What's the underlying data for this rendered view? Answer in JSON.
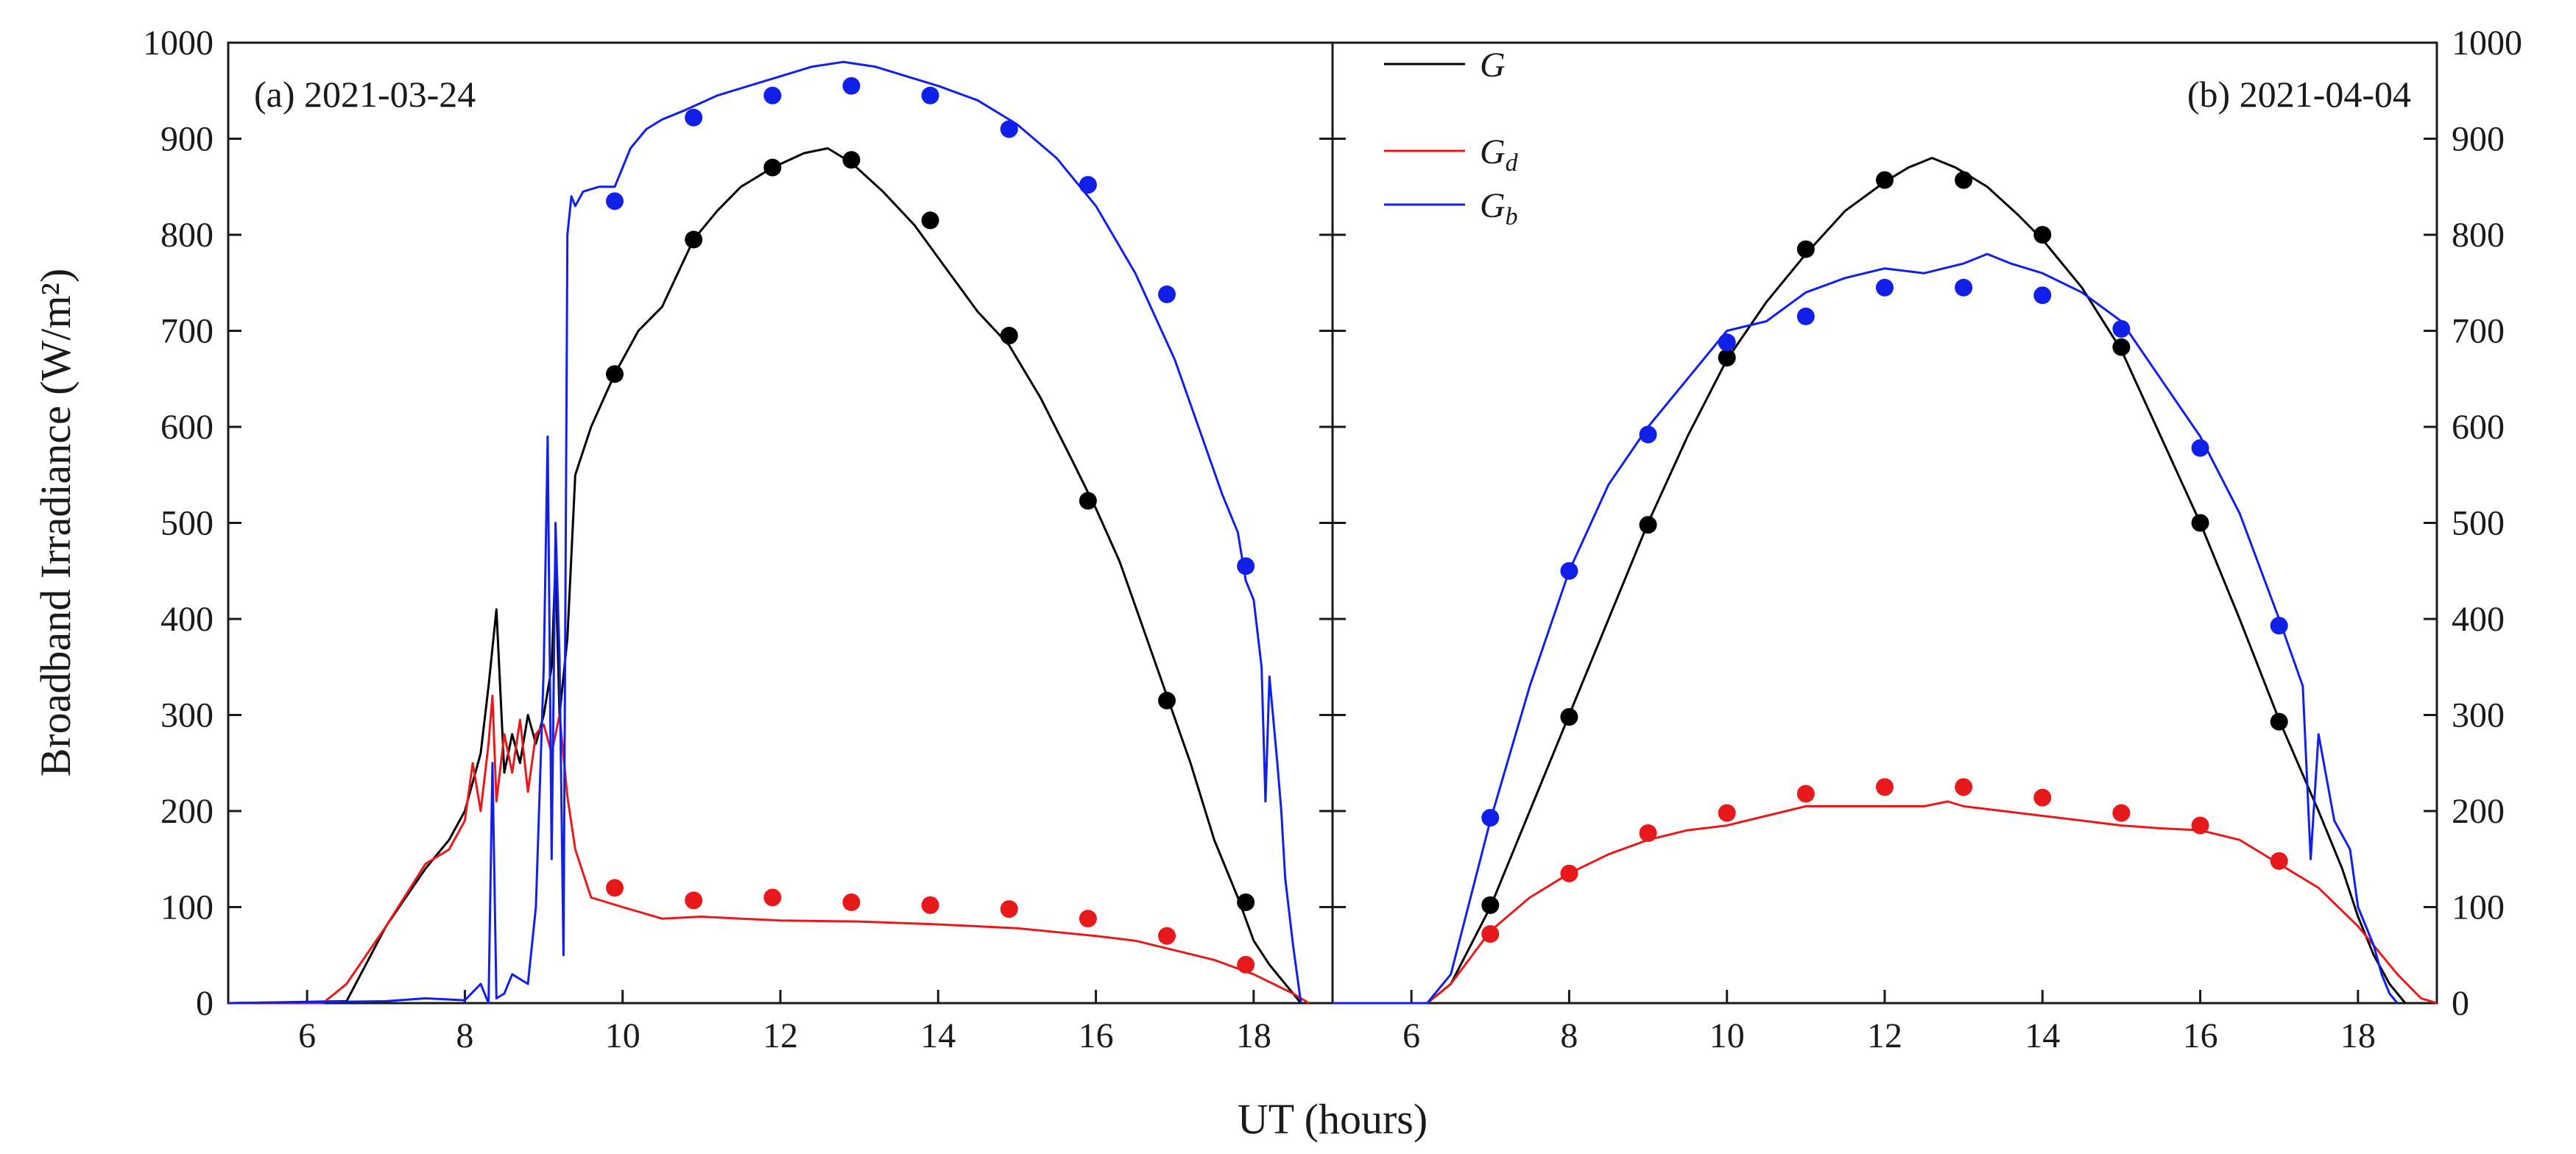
{
  "chart_data": {
    "type": "line",
    "xlabel": "UT (hours)",
    "ylabel": "Broadband Irradiance (W/m²)",
    "xlim": [
      5,
      19
    ],
    "ylim": [
      0,
      1000
    ],
    "x_ticks": [
      "6",
      "8",
      "10",
      "12",
      "14",
      "16",
      "18"
    ],
    "y_ticks": [
      "0",
      "100",
      "200",
      "300",
      "400",
      "500",
      "600",
      "700",
      "800",
      "900",
      "1000"
    ],
    "legend": {
      "placement": "top-left of panel b",
      "entries": [
        {
          "series": "G",
          "label": "G",
          "color": "#000000"
        },
        {
          "series": "Gd",
          "label": "G",
          "subscript": "d",
          "color": "#e8191b"
        },
        {
          "series": "Gb",
          "label": "G",
          "subscript": "b",
          "color": "#1020e8"
        }
      ]
    },
    "panels": [
      {
        "id": "a",
        "label": "(a) 2021-03-24",
        "label_placement": "top-left",
        "series": [
          {
            "name": "G",
            "color": "#000000",
            "kind": "line",
            "x": [
              5.0,
              6.5,
              7.0,
              7.5,
              7.8,
              8.0,
              8.2,
              8.3,
              8.4,
              8.5,
              8.6,
              8.7,
              8.8,
              8.9,
              9.0,
              9.1,
              9.15,
              9.2,
              9.3,
              9.4,
              9.6,
              9.9,
              10.2,
              10.5,
              10.7,
              10.9,
              11.2,
              11.5,
              11.9,
              12.3,
              12.6,
              12.9,
              13.3,
              13.7,
              14.1,
              14.5,
              14.9,
              15.3,
              15.7,
              16.0,
              16.3,
              16.6,
              16.9,
              17.2,
              17.5,
              17.8,
              18.0,
              18.2,
              18.4,
              18.6
            ],
            "y": [
              0,
              2,
              80,
              140,
              170,
              200,
              260,
              330,
              410,
              240,
              280,
              250,
              300,
              270,
              300,
              350,
              460,
              300,
              380,
              550,
              600,
              655,
              700,
              725,
              760,
              795,
              825,
              850,
              870,
              885,
              890,
              875,
              845,
              810,
              765,
              720,
              685,
              630,
              565,
              515,
              460,
              390,
              320,
              250,
              170,
              110,
              65,
              40,
              20,
              0
            ]
          },
          {
            "name": "Gd",
            "color": "#e8191b",
            "kind": "line",
            "x": [
              5.0,
              6.2,
              6.5,
              7.0,
              7.5,
              7.8,
              8.0,
              8.1,
              8.2,
              8.3,
              8.35,
              8.4,
              8.5,
              8.6,
              8.7,
              8.8,
              8.9,
              9.0,
              9.1,
              9.2,
              9.3,
              9.4,
              9.6,
              10.0,
              10.5,
              11.0,
              11.5,
              12.0,
              13.0,
              14.0,
              15.0,
              16.0,
              16.5,
              17.0,
              17.5,
              18.0,
              18.5,
              18.7
            ],
            "y": [
              0,
              0,
              20,
              80,
              145,
              160,
              190,
              250,
              200,
              270,
              320,
              210,
              280,
              240,
              295,
              220,
              280,
              290,
              260,
              300,
              215,
              160,
              110,
              100,
              88,
              90,
              88,
              86,
              85,
              82,
              78,
              70,
              65,
              55,
              45,
              30,
              10,
              0
            ]
          },
          {
            "name": "Gb",
            "color": "#1020e8",
            "kind": "line",
            "x": [
              5.0,
              7.0,
              7.5,
              8.0,
              8.2,
              8.3,
              8.35,
              8.4,
              8.5,
              8.6,
              8.8,
              8.9,
              9.0,
              9.05,
              9.1,
              9.15,
              9.2,
              9.25,
              9.3,
              9.35,
              9.4,
              9.5,
              9.7,
              9.9,
              10.1,
              10.3,
              10.5,
              10.8,
              11.2,
              11.6,
              12.0,
              12.4,
              12.8,
              13.2,
              13.6,
              14.0,
              14.5,
              15.0,
              15.5,
              16.0,
              16.5,
              17.0,
              17.3,
              17.6,
              17.8,
              17.9,
              18.0,
              18.1,
              18.15,
              18.2,
              18.3,
              18.35,
              18.4,
              18.5,
              18.6
            ],
            "y": [
              0,
              2,
              5,
              3,
              20,
              0,
              250,
              5,
              10,
              30,
              20,
              100,
              350,
              590,
              150,
              500,
              360,
              50,
              800,
              840,
              830,
              845,
              850,
              850,
              890,
              910,
              920,
              930,
              945,
              955,
              965,
              975,
              980,
              975,
              965,
              955,
              940,
              915,
              880,
              830,
              760,
              670,
              600,
              530,
              490,
              440,
              420,
              350,
              210,
              340,
              250,
              200,
              130,
              60,
              0
            ]
          },
          {
            "name": "G (markers)",
            "color": "#000000",
            "kind": "markers",
            "x": [
              9.9,
              10.9,
              11.9,
              12.9,
              13.9,
              14.9,
              15.9,
              16.9,
              17.9
            ],
            "y": [
              655,
              795,
              870,
              878,
              815,
              695,
              523,
              315,
              105
            ]
          },
          {
            "name": "Gd (markers)",
            "color": "#e8191b",
            "kind": "markers",
            "x": [
              9.9,
              10.9,
              11.9,
              12.9,
              13.9,
              14.9,
              15.9,
              16.9,
              17.9
            ],
            "y": [
              120,
              107,
              110,
              105,
              102,
              98,
              88,
              70,
              40
            ]
          },
          {
            "name": "Gb (markers)",
            "color": "#1020e8",
            "kind": "markers",
            "x": [
              9.9,
              10.9,
              11.9,
              12.9,
              13.9,
              14.9,
              15.9,
              16.9,
              17.9
            ],
            "y": [
              835,
              922,
              945,
              955,
              945,
              910,
              852,
              738,
              455
            ]
          }
        ]
      },
      {
        "id": "b",
        "label": "(b) 2021-04-04",
        "label_placement": "top-right",
        "series": [
          {
            "name": "G",
            "color": "#000000",
            "kind": "line",
            "x": [
              5.0,
              6.2,
              6.5,
              7.0,
              7.5,
              8.0,
              8.5,
              9.0,
              9.5,
              10.0,
              10.5,
              11.0,
              11.5,
              12.0,
              12.3,
              12.6,
              12.9,
              13.3,
              13.7,
              14.0,
              14.5,
              15.0,
              15.5,
              16.0,
              16.5,
              17.0,
              17.5,
              17.8,
              18.0,
              18.2,
              18.4,
              18.6
            ],
            "y": [
              0,
              0,
              20,
              100,
              200,
              300,
              400,
              500,
              590,
              670,
              730,
              780,
              825,
              855,
              870,
              880,
              870,
              850,
              820,
              795,
              745,
              680,
              590,
              500,
              400,
              295,
              200,
              140,
              90,
              50,
              20,
              0
            ]
          },
          {
            "name": "Gd",
            "color": "#e8191b",
            "kind": "line",
            "x": [
              5.0,
              6.2,
              6.5,
              7.0,
              7.5,
              8.0,
              8.5,
              9.0,
              9.5,
              10.0,
              10.5,
              11.0,
              11.5,
              12.0,
              12.5,
              12.8,
              13.0,
              13.5,
              14.0,
              14.5,
              15.0,
              15.5,
              16.0,
              16.5,
              17.0,
              17.5,
              18.0,
              18.5,
              18.8,
              19.0
            ],
            "y": [
              0,
              0,
              20,
              75,
              110,
              135,
              155,
              170,
              180,
              185,
              195,
              205,
              205,
              205,
              205,
              210,
              205,
              200,
              195,
              190,
              185,
              182,
              180,
              170,
              145,
              120,
              80,
              30,
              5,
              0
            ]
          },
          {
            "name": "Gb",
            "color": "#1020e8",
            "kind": "line",
            "x": [
              5.0,
              6.2,
              6.5,
              7.0,
              7.5,
              8.0,
              8.5,
              9.0,
              9.5,
              10.0,
              10.5,
              11.0,
              11.5,
              12.0,
              12.5,
              13.0,
              13.3,
              13.6,
              14.0,
              14.5,
              15.0,
              15.5,
              16.0,
              16.5,
              17.0,
              17.3,
              17.4,
              17.5,
              17.7,
              17.9,
              18.0,
              18.2,
              18.3,
              18.4,
              18.5
            ],
            "y": [
              0,
              0,
              30,
              190,
              330,
              450,
              540,
              600,
              650,
              700,
              710,
              740,
              755,
              765,
              760,
              770,
              780,
              770,
              760,
              740,
              710,
              650,
              590,
              510,
              400,
              330,
              150,
              280,
              190,
              160,
              100,
              60,
              30,
              10,
              0
            ]
          },
          {
            "name": "G (markers)",
            "color": "#000000",
            "kind": "markers",
            "x": [
              7,
              8,
              9,
              10,
              11,
              12,
              13,
              14,
              15,
              16,
              17
            ],
            "y": [
              102,
              298,
              498,
              672,
              785,
              857,
              857,
              800,
              683,
              500,
              293
            ]
          },
          {
            "name": "Gd (markers)",
            "color": "#e8191b",
            "kind": "markers",
            "x": [
              7,
              8,
              9,
              10,
              11,
              12,
              13,
              14,
              15,
              16,
              17
            ],
            "y": [
              72,
              135,
              177,
              198,
              218,
              225,
              225,
              214,
              198,
              185,
              148
            ]
          },
          {
            "name": "Gb (markers)",
            "color": "#1020e8",
            "kind": "markers",
            "x": [
              7,
              8,
              9,
              10,
              11,
              12,
              13,
              14,
              15,
              16,
              17
            ],
            "y": [
              193,
              450,
              592,
              688,
              715,
              745,
              745,
              737,
              702,
              578,
              393
            ]
          }
        ]
      }
    ]
  }
}
